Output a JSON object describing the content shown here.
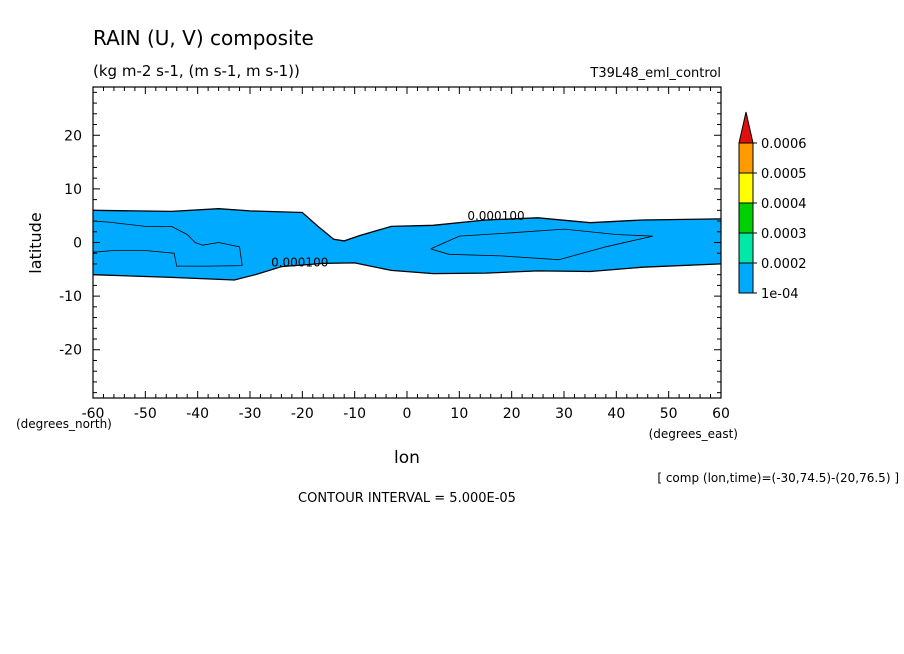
{
  "chart_data": {
    "type": "contour",
    "title": "RAIN (U, V) composite",
    "subtitle": "(kg m-2 s-1, (m s-1, m s-1))",
    "dataset": "T39L48_eml_control",
    "xlabel": "lon",
    "ylabel": "latitude",
    "x_units": "(degrees_east)",
    "y_units": "(degrees_north)",
    "xlim": [
      -60,
      60
    ],
    "ylim": [
      -29,
      29
    ],
    "x_ticks": [
      -60,
      -50,
      -40,
      -30,
      -20,
      -10,
      0,
      10,
      20,
      30,
      40,
      50,
      60
    ],
    "x_tick_labels": [
      "-60",
      "-50",
      "-40",
      "-30",
      "-20",
      "-10",
      "0",
      "10",
      "20",
      "30",
      "40",
      "50",
      "60"
    ],
    "y_ticks": [
      20,
      10,
      0,
      -10,
      -20
    ],
    "y_tick_labels": [
      "20",
      "10",
      "0",
      "-10",
      "-20"
    ],
    "contour_interval": "CONTOUR INTERVAL = 5.000E-05",
    "comp_note": "[ comp (lon,time)=(-30,74.5)-(20,76.5) ]",
    "contour_labels": [
      {
        "text": "0.000100",
        "lon": 17,
        "lat": 4.2
      },
      {
        "text": "0.000100",
        "lon": -20.5,
        "lat": -4.5
      }
    ],
    "filled_region_1e-04": {
      "north_edge": [
        [
          -60,
          6
        ],
        [
          -45,
          5.8
        ],
        [
          -36,
          6.3
        ],
        [
          -30,
          5.9
        ],
        [
          -20,
          5.6
        ],
        [
          -17,
          3
        ],
        [
          -14,
          0.6
        ],
        [
          -12,
          0.3
        ],
        [
          -9,
          1.3
        ],
        [
          -3,
          3
        ],
        [
          5,
          3.2
        ],
        [
          15,
          4.2
        ],
        [
          25,
          4.6
        ],
        [
          35,
          3.7
        ],
        [
          45,
          4.2
        ],
        [
          60,
          4.4
        ]
      ],
      "south_edge": [
        [
          -60,
          -6
        ],
        [
          -45,
          -6.5
        ],
        [
          -33,
          -7
        ],
        [
          -29,
          -6
        ],
        [
          -24,
          -4.5
        ],
        [
          -16,
          -3.9
        ],
        [
          -10,
          -3.8
        ],
        [
          -3,
          -5.2
        ],
        [
          5,
          -5.8
        ],
        [
          15,
          -5.7
        ],
        [
          25,
          -5.3
        ],
        [
          35,
          -5.4
        ],
        [
          45,
          -4.6
        ],
        [
          60,
          -4
        ]
      ]
    },
    "contour_lines_0.00015": [
      [
        [
          -60,
          4
        ],
        [
          -57,
          3.8
        ],
        [
          -50,
          3
        ],
        [
          -45,
          3
        ],
        [
          -42,
          1.5
        ],
        [
          -40.5,
          0
        ],
        [
          -39,
          -0.5
        ],
        [
          -36,
          0
        ],
        [
          -32,
          -0.8
        ],
        [
          -31.5,
          -4.3
        ],
        [
          -38,
          -4.4
        ],
        [
          -44,
          -4.4
        ],
        [
          -44.5,
          -2
        ],
        [
          -50,
          -1.5
        ],
        [
          -56,
          -1.5
        ],
        [
          -60,
          -1.8
        ]
      ],
      [
        [
          4.5,
          -1.2
        ],
        [
          10,
          1.2
        ],
        [
          20,
          1.8
        ],
        [
          30,
          2.5
        ],
        [
          40,
          1.5
        ],
        [
          47,
          1.2
        ],
        [
          38,
          -0.8
        ],
        [
          29,
          -3.2
        ],
        [
          18,
          -2.5
        ],
        [
          8,
          -2.2
        ],
        [
          4.5,
          -1.2
        ]
      ]
    ],
    "colorbar": {
      "levels": [
        "0.0006",
        "0.0005",
        "0.0004",
        "0.0003",
        "0.0002",
        "1e-04"
      ],
      "colors": [
        "#e01010",
        "#ff9b00",
        "#ffff00",
        "#00d000",
        "#00e8a8",
        "#00aaff"
      ]
    }
  }
}
